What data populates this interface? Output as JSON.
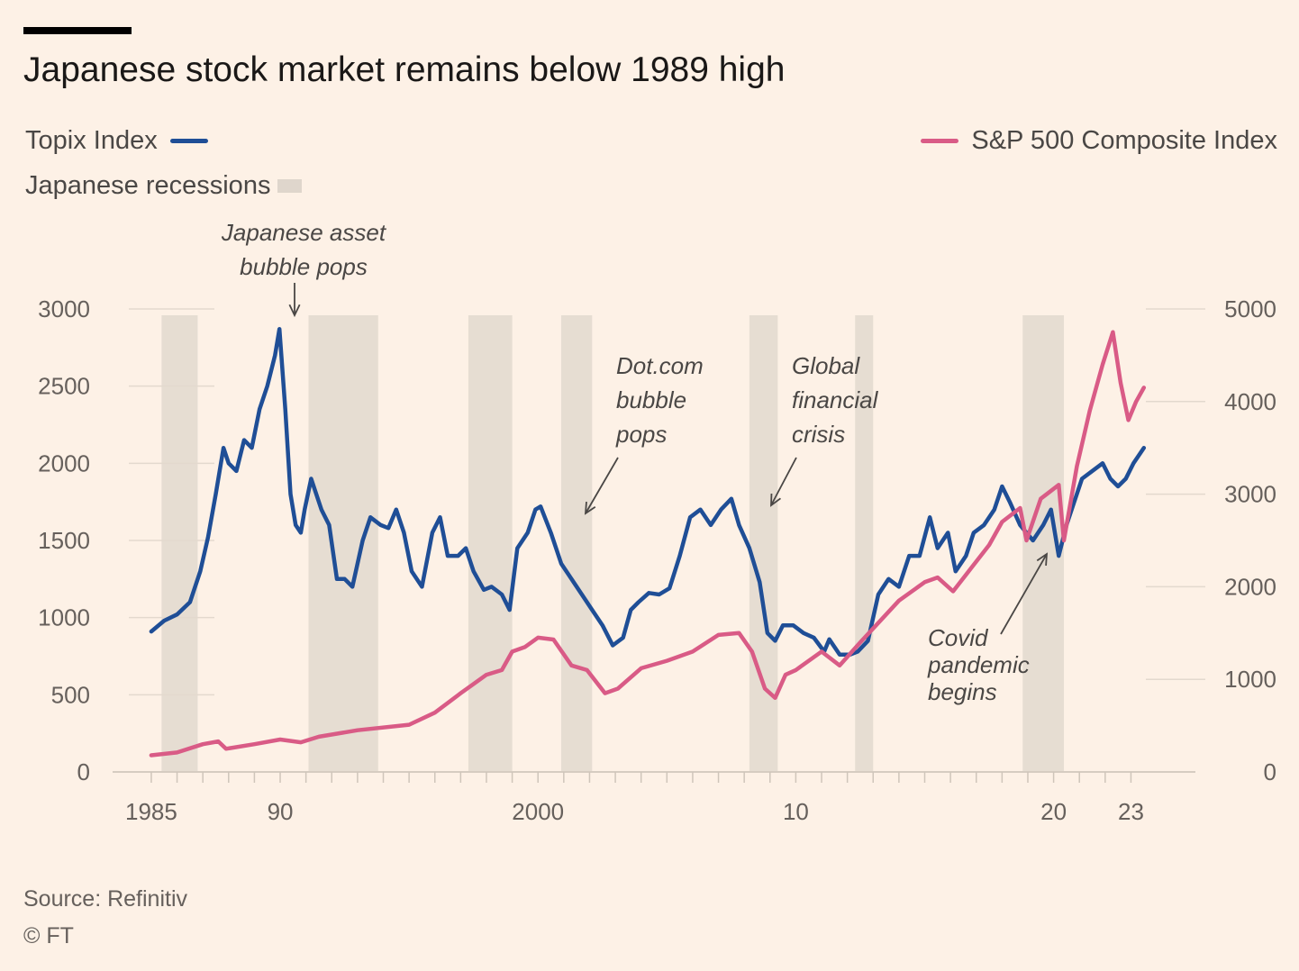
{
  "chart_data": {
    "type": "line",
    "title": "Japanese stock market remains below 1989 high",
    "legend": {
      "topix": "Topix Index",
      "sp500": "S&P 500 Composite Index",
      "recessions": "Japanese recessions"
    },
    "colors": {
      "topix": "#1f4e96",
      "sp500": "#d95b86",
      "recession": "#e6ddd2",
      "grid": "#e3d9ce",
      "arrow": "#4a4745"
    },
    "x_ticks": [
      {
        "value": 1985,
        "label": "1985"
      },
      {
        "value": 1990,
        "label": "90"
      },
      {
        "value": 2000,
        "label": "2000"
      },
      {
        "value": 2010,
        "label": "10"
      },
      {
        "value": 2020,
        "label": "20"
      },
      {
        "value": 2023,
        "label": "23"
      }
    ],
    "xlim": [
      1983.5,
      2025.5
    ],
    "y_left": {
      "range": [
        0,
        3000
      ],
      "ticks": [
        0,
        500,
        1000,
        1500,
        2000,
        2500,
        3000
      ],
      "labels": [
        "0",
        "500",
        "1000",
        "1500",
        "2000",
        "2500",
        "3000"
      ]
    },
    "y_right": {
      "range": [
        0,
        5000
      ],
      "ticks": [
        0,
        1000,
        2000,
        3000,
        4000,
        5000
      ],
      "labels": [
        "0",
        "1000",
        "2000",
        "3000",
        "4000",
        "5000"
      ]
    },
    "recessions": [
      [
        1985.4,
        1986.8
      ],
      [
        1991.1,
        1993.8
      ],
      [
        1997.3,
        1999.0
      ],
      [
        2000.9,
        2002.1
      ],
      [
        2008.2,
        2009.3
      ],
      [
        2012.3,
        2013.0
      ],
      [
        2018.8,
        2020.4
      ]
    ],
    "series": [
      {
        "name": "Topix Index",
        "axis": "left",
        "x": [
          1985.0,
          1985.5,
          1986.0,
          1986.5,
          1986.9,
          1987.2,
          1987.5,
          1987.8,
          1988.0,
          1988.3,
          1988.6,
          1988.9,
          1989.2,
          1989.5,
          1989.8,
          1989.97,
          1990.2,
          1990.4,
          1990.6,
          1990.8,
          1990.95,
          1991.2,
          1991.6,
          1991.9,
          1992.2,
          1992.5,
          1992.8,
          1993.2,
          1993.5,
          1993.9,
          1994.2,
          1994.5,
          1994.8,
          1995.1,
          1995.5,
          1995.9,
          1996.2,
          1996.5,
          1996.9,
          1997.2,
          1997.5,
          1997.9,
          1998.2,
          1998.6,
          1998.9,
          1999.2,
          1999.6,
          1999.9,
          2000.1,
          2000.5,
          2000.9,
          2001.3,
          2001.7,
          2002.1,
          2002.5,
          2002.9,
          2003.3,
          2003.6,
          2003.9,
          2004.3,
          2004.7,
          2005.1,
          2005.5,
          2005.9,
          2006.3,
          2006.7,
          2007.1,
          2007.5,
          2007.8,
          2008.2,
          2008.6,
          2008.9,
          2009.2,
          2009.5,
          2009.9,
          2010.3,
          2010.7,
          2011.1,
          2011.3,
          2011.7,
          2012.1,
          2012.4,
          2012.8,
          2013.2,
          2013.6,
          2014.0,
          2014.4,
          2014.8,
          2015.2,
          2015.5,
          2015.9,
          2016.2,
          2016.6,
          2016.9,
          2017.3,
          2017.7,
          2018.0,
          2018.3,
          2018.7,
          2018.95,
          2019.2,
          2019.6,
          2019.9,
          2020.2,
          2020.5,
          2020.8,
          2021.1,
          2021.5,
          2021.9,
          2022.2,
          2022.5,
          2022.8,
          2023.1,
          2023.5
        ],
        "values": [
          910,
          980,
          1020,
          1100,
          1300,
          1520,
          1800,
          2100,
          2000,
          1950,
          2150,
          2100,
          2350,
          2500,
          2700,
          2870,
          2350,
          1800,
          1600,
          1550,
          1700,
          1900,
          1700,
          1600,
          1250,
          1250,
          1200,
          1500,
          1650,
          1600,
          1580,
          1700,
          1550,
          1300,
          1200,
          1550,
          1650,
          1400,
          1400,
          1450,
          1300,
          1180,
          1200,
          1150,
          1050,
          1450,
          1550,
          1700,
          1720,
          1550,
          1350,
          1250,
          1150,
          1050,
          950,
          820,
          870,
          1050,
          1100,
          1160,
          1150,
          1190,
          1400,
          1650,
          1700,
          1600,
          1700,
          1770,
          1600,
          1450,
          1230,
          900,
          850,
          950,
          950,
          900,
          870,
          780,
          860,
          760,
          760,
          780,
          850,
          1150,
          1250,
          1200,
          1400,
          1400,
          1650,
          1450,
          1550,
          1300,
          1400,
          1550,
          1600,
          1700,
          1850,
          1750,
          1600,
          1550,
          1500,
          1600,
          1700,
          1400,
          1600,
          1750,
          1900,
          1950,
          2000,
          1900,
          1850,
          1900,
          2000,
          2100
        ],
        "color": "#1f4e96"
      },
      {
        "name": "S&P 500 Composite Index",
        "axis": "right",
        "x": [
          1985.0,
          1986.0,
          1987.0,
          1987.6,
          1987.9,
          1989.0,
          1990.0,
          1990.8,
          1991.5,
          1993.0,
          1995.0,
          1996.0,
          1997.0,
          1998.0,
          1998.6,
          1999.0,
          1999.5,
          2000.0,
          2000.6,
          2001.3,
          2001.9,
          2002.6,
          2003.1,
          2004.0,
          2005.0,
          2006.0,
          2007.0,
          2007.8,
          2008.3,
          2008.8,
          2009.2,
          2009.6,
          2010.0,
          2011.0,
          2011.7,
          2012.5,
          2013.0,
          2014.0,
          2015.0,
          2015.5,
          2016.1,
          2016.8,
          2017.5,
          2018.0,
          2018.7,
          2018.95,
          2019.5,
          2020.2,
          2020.4,
          2020.9,
          2021.4,
          2021.9,
          2022.3,
          2022.6,
          2022.9,
          2023.2,
          2023.5
        ],
        "values": [
          180,
          210,
          300,
          330,
          250,
          300,
          350,
          320,
          380,
          450,
          510,
          640,
          850,
          1050,
          1100,
          1300,
          1350,
          1450,
          1430,
          1150,
          1100,
          850,
          900,
          1120,
          1200,
          1300,
          1480,
          1500,
          1300,
          900,
          800,
          1050,
          1100,
          1300,
          1150,
          1400,
          1550,
          1850,
          2050,
          2100,
          1950,
          2200,
          2450,
          2700,
          2850,
          2500,
          2950,
          3100,
          2500,
          3300,
          3900,
          4400,
          4750,
          4200,
          3800,
          4000,
          4150
        ],
        "color": "#d95b86"
      }
    ],
    "annotations": {
      "bubble": [
        "Japanese asset",
        "bubble pops"
      ],
      "dotcom": [
        "Dot.com",
        "bubble",
        "pops"
      ],
      "gfc": [
        "Global",
        "financial",
        "crisis"
      ],
      "covid": [
        "Covid",
        "pandemic",
        "begins"
      ]
    }
  },
  "footer": {
    "source": "Source: Refinitiv",
    "copyright": "© FT"
  }
}
